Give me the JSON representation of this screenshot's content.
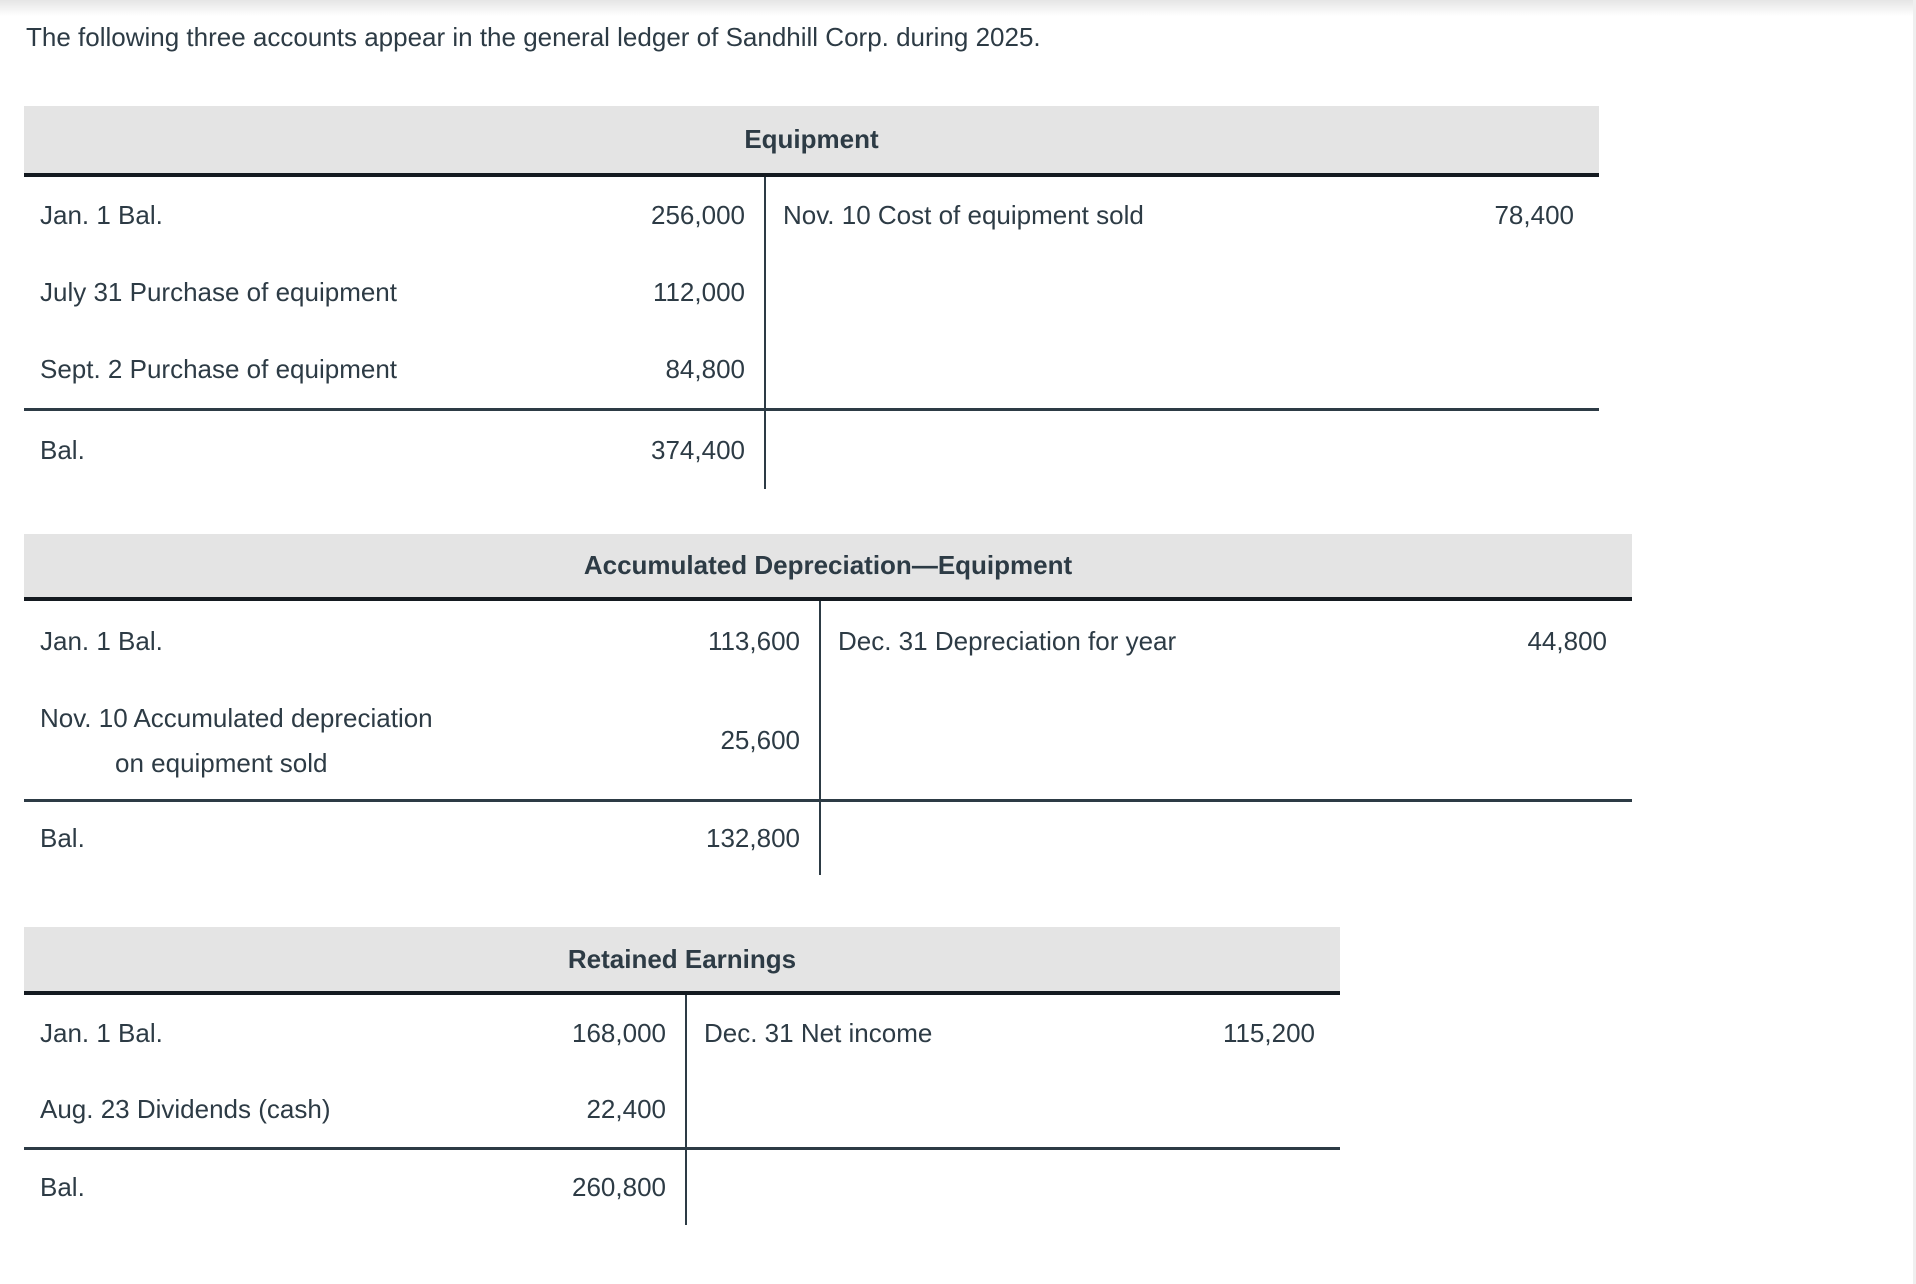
{
  "page": {
    "intro": "The following three accounts appear in the general ledger of Sandhill Corp. during 2025."
  },
  "accounts": [
    {
      "title": "Equipment",
      "debits": [
        {
          "label": "Jan. 1 Bal.",
          "amount": "256,000"
        },
        {
          "label": "July 31 Purchase of equipment",
          "amount": "112,000"
        },
        {
          "label": "Sept. 2 Purchase of equipment",
          "amount": "84,800"
        }
      ],
      "credits": [
        {
          "label": "Nov. 10 Cost of equipment sold",
          "amount": "78,400"
        }
      ],
      "balance": {
        "label": "Bal.",
        "amount": "374,400"
      }
    },
    {
      "title": "Accumulated Depreciation—Equipment",
      "debits": [
        {
          "label": "Jan. 1 Bal.",
          "amount": "113,600"
        },
        {
          "label_line1": "Nov. 10 Accumulated depreciation",
          "label_line2": "on equipment sold",
          "amount": "25,600"
        }
      ],
      "credits": [
        {
          "label": "Dec. 31 Depreciation for year",
          "amount": "44,800"
        }
      ],
      "balance": {
        "label": "Bal.",
        "amount": "132,800"
      }
    },
    {
      "title": "Retained Earnings",
      "debits": [
        {
          "label": "Jan. 1 Bal.",
          "amount": "168,000"
        },
        {
          "label": "Aug. 23 Dividends (cash)",
          "amount": "22,400"
        }
      ],
      "credits": [
        {
          "label": "Dec. 31 Net income",
          "amount": "115,200"
        }
      ],
      "balance": {
        "label": "Bal.",
        "amount": "260,800"
      }
    }
  ]
}
